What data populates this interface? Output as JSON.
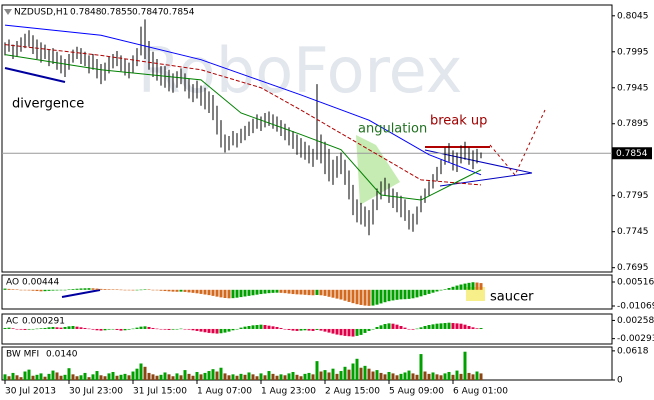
{
  "chart_data": [
    {
      "type": "ohlc",
      "title": "NZDUSD,H1",
      "quote": [
        0.7848,
        0.7855,
        0.7847,
        0.7854
      ],
      "color": "#000000",
      "watermark": "RoboForex",
      "annotations": [
        "divergence",
        "angulation",
        "break up"
      ],
      "xticks": [
        {
          "value": 0,
          "label": "30 Jul 2013"
        },
        {
          "value": 16,
          "label": "30 Jul 23:00"
        },
        {
          "value": 32,
          "label": "31 Jul 15:00"
        },
        {
          "value": 48,
          "label": "1 Aug 07:00"
        },
        {
          "value": 64,
          "label": "1 Aug 23:00"
        },
        {
          "value": 80,
          "label": "2 Aug 15:00"
        },
        {
          "value": 96,
          "label": "5 Aug 09:00"
        },
        {
          "value": 112,
          "label": "6 Aug 01:00"
        }
      ],
      "ylim": [
        0.7689,
        0.806
      ],
      "yticks": [
        0.8045,
        0.7995,
        0.7945,
        0.7895,
        0.7795,
        0.7745,
        0.7695
      ],
      "high": [
        0.8008,
        0.8012,
        0.8005,
        0.801,
        0.8015,
        0.802,
        0.8025,
        0.8018,
        0.8012,
        0.8008,
        0.8005,
        0.7998,
        0.8,
        0.7995,
        0.799,
        0.7985,
        0.7992,
        0.7998,
        0.8002,
        0.8,
        0.7995,
        0.799,
        0.7992,
        0.7985,
        0.7978,
        0.798,
        0.7988,
        0.7992,
        0.7996,
        0.799,
        0.7985,
        0.798,
        0.799,
        0.8,
        0.803,
        0.804,
        0.801,
        0.7995,
        0.7985,
        0.7975,
        0.7975,
        0.797,
        0.7965,
        0.7968,
        0.7972,
        0.7965,
        0.7958,
        0.795,
        0.7955,
        0.7948,
        0.7945,
        0.794,
        0.7935,
        0.792,
        0.79,
        0.788,
        0.7878,
        0.7885,
        0.7882,
        0.7888,
        0.7892,
        0.7898,
        0.7902,
        0.7908,
        0.7905,
        0.791,
        0.7912,
        0.7908,
        0.7905,
        0.79,
        0.7895,
        0.789,
        0.7885,
        0.788,
        0.7875,
        0.787,
        0.7865,
        0.786,
        0.795,
        0.788,
        0.787,
        0.786,
        0.7845,
        0.785,
        0.7855,
        0.7845,
        0.783,
        0.781,
        0.779,
        0.7785,
        0.778,
        0.7775,
        0.779,
        0.7805,
        0.7815,
        0.782,
        0.7812,
        0.7805,
        0.78,
        0.7795,
        0.779,
        0.7775,
        0.777,
        0.778,
        0.7795,
        0.7805,
        0.7815,
        0.7825,
        0.7835,
        0.7845,
        0.7862,
        0.7868,
        0.7858,
        0.7855,
        0.7865,
        0.787,
        0.7862,
        0.7858,
        0.786,
        0.7855
      ],
      "low": [
        0.799,
        0.7995,
        0.7985,
        0.7988,
        0.7995,
        0.8,
        0.8002,
        0.7992,
        0.7985,
        0.798,
        0.7985,
        0.7975,
        0.7978,
        0.797,
        0.7965,
        0.796,
        0.797,
        0.798,
        0.7985,
        0.7978,
        0.7975,
        0.7965,
        0.797,
        0.7958,
        0.795,
        0.7955,
        0.7965,
        0.7972,
        0.7975,
        0.7968,
        0.7962,
        0.7958,
        0.7965,
        0.7975,
        0.799,
        0.7985,
        0.797,
        0.796,
        0.7955,
        0.7948,
        0.7945,
        0.794,
        0.7938,
        0.7945,
        0.795,
        0.794,
        0.793,
        0.7925,
        0.793,
        0.792,
        0.7915,
        0.791,
        0.79,
        0.788,
        0.7862,
        0.7855,
        0.7858,
        0.7865,
        0.7862,
        0.7868,
        0.7872,
        0.7878,
        0.7882,
        0.7888,
        0.7885,
        0.789,
        0.7892,
        0.7888,
        0.7884,
        0.7878,
        0.7872,
        0.7865,
        0.786,
        0.7852,
        0.7848,
        0.7845,
        0.784,
        0.7835,
        0.7845,
        0.784,
        0.7825,
        0.7815,
        0.781,
        0.782,
        0.7825,
        0.781,
        0.779,
        0.7768,
        0.7758,
        0.7755,
        0.7752,
        0.774,
        0.7755,
        0.7775,
        0.779,
        0.7795,
        0.7785,
        0.7778,
        0.7772,
        0.7765,
        0.776,
        0.7748,
        0.7745,
        0.7755,
        0.7772,
        0.7785,
        0.7795,
        0.7805,
        0.7815,
        0.7825,
        0.7838,
        0.7842,
        0.783,
        0.7828,
        0.784,
        0.7845,
        0.7838,
        0.7832,
        0.784,
        0.7847
      ],
      "lines": [
        {
          "color": "#0000ff",
          "x": [
            0,
            24,
            49,
            74,
            91,
            106,
            119
          ],
          "values": [
            0.8032,
            0.8018,
            0.7984,
            0.7935,
            0.79,
            0.7852,
            0.7824
          ]
        },
        {
          "color": "#b00000",
          "x": [
            0,
            24,
            49,
            64,
            74,
            91,
            104,
            119
          ],
          "values": [
            0.8005,
            0.799,
            0.797,
            0.7945,
            0.7914,
            0.7859,
            0.7817,
            0.781
          ]
        },
        {
          "color": "#008000",
          "x": [
            0,
            24,
            49,
            59,
            74,
            84,
            94,
            104,
            114,
            119
          ],
          "values": [
            0.7991,
            0.797,
            0.7956,
            0.791,
            0.788,
            0.7859,
            0.7796,
            0.7789,
            0.7817,
            0.7831
          ]
        }
      ]
    },
    {
      "type": "histogram",
      "title": "AO",
      "up_color": "#00a000",
      "down_color": "#d2691e",
      "ylim": [
        -0.01267,
        0.00978
      ],
      "yticks": [
        0.00516,
        -0.01069
      ],
      "annotation": "saucer",
      "values": [
        0.0008,
        0.0006,
        0.0004,
        0.0002,
        0,
        -0.0002,
        -0.0004,
        -0.0006,
        -0.0008,
        -0.001,
        -0.0009,
        -0.0007,
        -0.0005,
        -0.0004,
        -0.0002,
        0,
        0.0003,
        0.0005,
        0.0007,
        0.0009,
        0.001,
        0.0011,
        0.001,
        0.0008,
        0.0006,
        0.0005,
        0.0004,
        0.0003,
        0.0002,
        0.0001,
        -0.0001,
        -0.0003,
        -0.0004,
        -0.0002,
        0.0001,
        0.0003,
        0.0002,
        0,
        -0.0003,
        -0.0006,
        -0.0008,
        -0.001,
        -0.0012,
        -0.0013,
        -0.0012,
        -0.0014,
        -0.0017,
        -0.002,
        -0.0023,
        -0.0027,
        -0.0031,
        -0.0035,
        -0.004,
        -0.0045,
        -0.005,
        -0.0054,
        -0.0056,
        -0.0055,
        -0.0052,
        -0.0048,
        -0.0044,
        -0.004,
        -0.0036,
        -0.0032,
        -0.0028,
        -0.0025,
        -0.0022,
        -0.002,
        -0.0019,
        -0.002,
        -0.0022,
        -0.0025,
        -0.0028,
        -0.003,
        -0.0031,
        -0.0033,
        -0.0035,
        -0.0036,
        -0.0034,
        -0.0036,
        -0.004,
        -0.0046,
        -0.0052,
        -0.0058,
        -0.0064,
        -0.0072,
        -0.008,
        -0.0088,
        -0.0095,
        -0.01,
        -0.0104,
        -0.0106,
        -0.0104,
        -0.0098,
        -0.009,
        -0.0082,
        -0.0075,
        -0.007,
        -0.0066,
        -0.0063,
        -0.0062,
        -0.006,
        -0.0056,
        -0.005,
        -0.0043,
        -0.0035,
        -0.0027,
        -0.0019,
        -0.0011,
        -0.0004,
        0.0004,
        0.0012,
        0.002,
        0.0028,
        0.0035,
        0.0041,
        0.0046,
        0.005,
        0.0048,
        0.00444
      ]
    },
    {
      "type": "histogram",
      "title": "AC",
      "up_color": "#00a000",
      "down_color": "#e0004a",
      "ylim": [
        -0.00456,
        0.004539
      ],
      "yticks": [
        0.002589,
        -0.002935
      ],
      "values": [
        0.0003,
        0.0004,
        0.0002,
        0,
        -0.0002,
        -0.0003,
        -0.0002,
        -0.0001,
        0.0001,
        0.0002,
        0.0003,
        0.0005,
        0.0006,
        0.0005,
        0.0004,
        0.0006,
        0.0008,
        0.0009,
        0.0007,
        0.0005,
        0.0003,
        0.0001,
        -0.0002,
        -0.0004,
        -0.0005,
        -0.0004,
        -0.0002,
        -0.0001,
        -0.0003,
        -0.0005,
        -0.0004,
        -0.0002,
        0.0001,
        0.0004,
        0.0007,
        0.0008,
        0.0006,
        0.0003,
        0.0001,
        -0.0001,
        -0.0002,
        -0.0003,
        -0.0002,
        0,
        0.0001,
        0,
        -0.0002,
        -0.0004,
        -0.0006,
        -0.0008,
        -0.001,
        -0.0012,
        -0.0013,
        -0.0014,
        -0.0013,
        -0.0011,
        -0.0008,
        -0.0004,
        0,
        0.0004,
        0.0007,
        0.0009,
        0.0011,
        0.0012,
        0.0013,
        0.0012,
        0.001,
        0.0008,
        0.0006,
        0.0003,
        0,
        -0.0003,
        -0.0005,
        -0.0006,
        -0.0005,
        -0.0004,
        -0.0005,
        -0.0006,
        -0.0003,
        -0.0005,
        -0.0008,
        -0.0011,
        -0.0014,
        -0.0017,
        -0.0019,
        -0.0021,
        -0.0022,
        -0.0023,
        -0.0021,
        -0.0018,
        -0.0012,
        -0.0006,
        0,
        0.0006,
        0.0011,
        0.0015,
        0.0017,
        0.0016,
        0.0013,
        0.0009,
        0.0004,
        0,
        -0.0002,
        0.0001,
        0.0005,
        0.0009,
        0.0012,
        0.0014,
        0.0016,
        0.0017,
        0.0018,
        0.0019,
        0.0018,
        0.0017,
        0.0016,
        0.0013,
        0.0009,
        0.0005,
        0.0002,
        0.000291
      ]
    },
    {
      "type": "histogram",
      "title": "BW MFI",
      "current_label": "0.0140",
      "up_color": "#00a000",
      "down_color": "#8b4513",
      "ylim": [
        0,
        0.07
      ],
      "yticks": [
        0.0618,
        0
      ],
      "values": [
        0.012,
        0.008,
        0.015,
        0.01,
        0.006,
        0.018,
        0.022,
        0.009,
        0.011,
        0.014,
        0.007,
        0.013,
        0.02,
        0.016,
        0.009,
        0.011,
        0.025,
        0.012,
        0.008,
        0.01,
        0.015,
        0.006,
        0.012,
        0.019,
        0.01,
        0.008,
        0.014,
        0.017,
        0.009,
        0.011,
        0.013,
        0.01,
        0.018,
        0.024,
        0.035,
        0.028,
        0.015,
        0.012,
        0.009,
        0.011,
        0.016,
        0.012,
        0.008,
        0.014,
        0.01,
        0.021,
        0.013,
        0.009,
        0.017,
        0.012,
        0.015,
        0.019,
        0.023,
        0.018,
        0.026,
        0.014,
        0.01,
        0.012,
        0.009,
        0.013,
        0.011,
        0.016,
        0.012,
        0.008,
        0.014,
        0.01,
        0.019,
        0.013,
        0.009,
        0.012,
        0.01,
        0.014,
        0.017,
        0.011,
        0.008,
        0.013,
        0.015,
        0.012,
        0.04,
        0.018,
        0.021,
        0.016,
        0.024,
        0.013,
        0.019,
        0.028,
        0.022,
        0.035,
        0.045,
        0.026,
        0.03,
        0.024,
        0.018,
        0.021,
        0.015,
        0.012,
        0.017,
        0.014,
        0.01,
        0.013,
        0.016,
        0.02,
        0.014,
        0.011,
        0.055,
        0.018,
        0.013,
        0.016,
        0.012,
        0.01,
        0.014,
        0.017,
        0.011,
        0.02,
        0.013,
        0.06,
        0.015,
        0.012,
        0.018,
        0.014
      ]
    }
  ]
}
